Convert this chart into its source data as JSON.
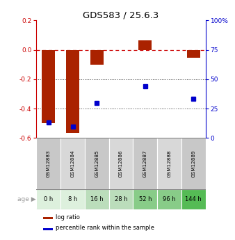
{
  "title": "GDS583 / 25.6.3",
  "samples": [
    "GSM12883",
    "GSM12884",
    "GSM12885",
    "GSM12886",
    "GSM12887",
    "GSM12888",
    "GSM12889"
  ],
  "ages": [
    "0 h",
    "8 h",
    "16 h",
    "28 h",
    "52 h",
    "96 h",
    "144 h"
  ],
  "log_ratios": [
    -0.5,
    -0.565,
    -0.1,
    0.0,
    0.065,
    0.0,
    -0.055
  ],
  "percentile_ranks": [
    13.0,
    9.5,
    30.0,
    null,
    44.0,
    null,
    33.0
  ],
  "ylim_left": [
    -0.6,
    0.2
  ],
  "ylim_right": [
    0,
    100
  ],
  "yticks_left": [
    -0.6,
    -0.4,
    -0.2,
    0.0,
    0.2
  ],
  "yticks_right": [
    0,
    25,
    50,
    75,
    100
  ],
  "bar_color": "#aa2200",
  "dot_color": "#0000cc",
  "age_colors": [
    "#ddf0dd",
    "#ddf0dd",
    "#bbddbb",
    "#bbddbb",
    "#88cc88",
    "#88cc88",
    "#55bb55"
  ],
  "sample_color_even": "#c8c8c8",
  "sample_color_odd": "#d8d8d8",
  "hline_color": "#cc0000",
  "grid_color": "#444444",
  "left_tick_color": "#cc0000",
  "right_tick_color": "#0000cc",
  "left_spine_color": "#cc0000",
  "right_spine_color": "#0000cc"
}
